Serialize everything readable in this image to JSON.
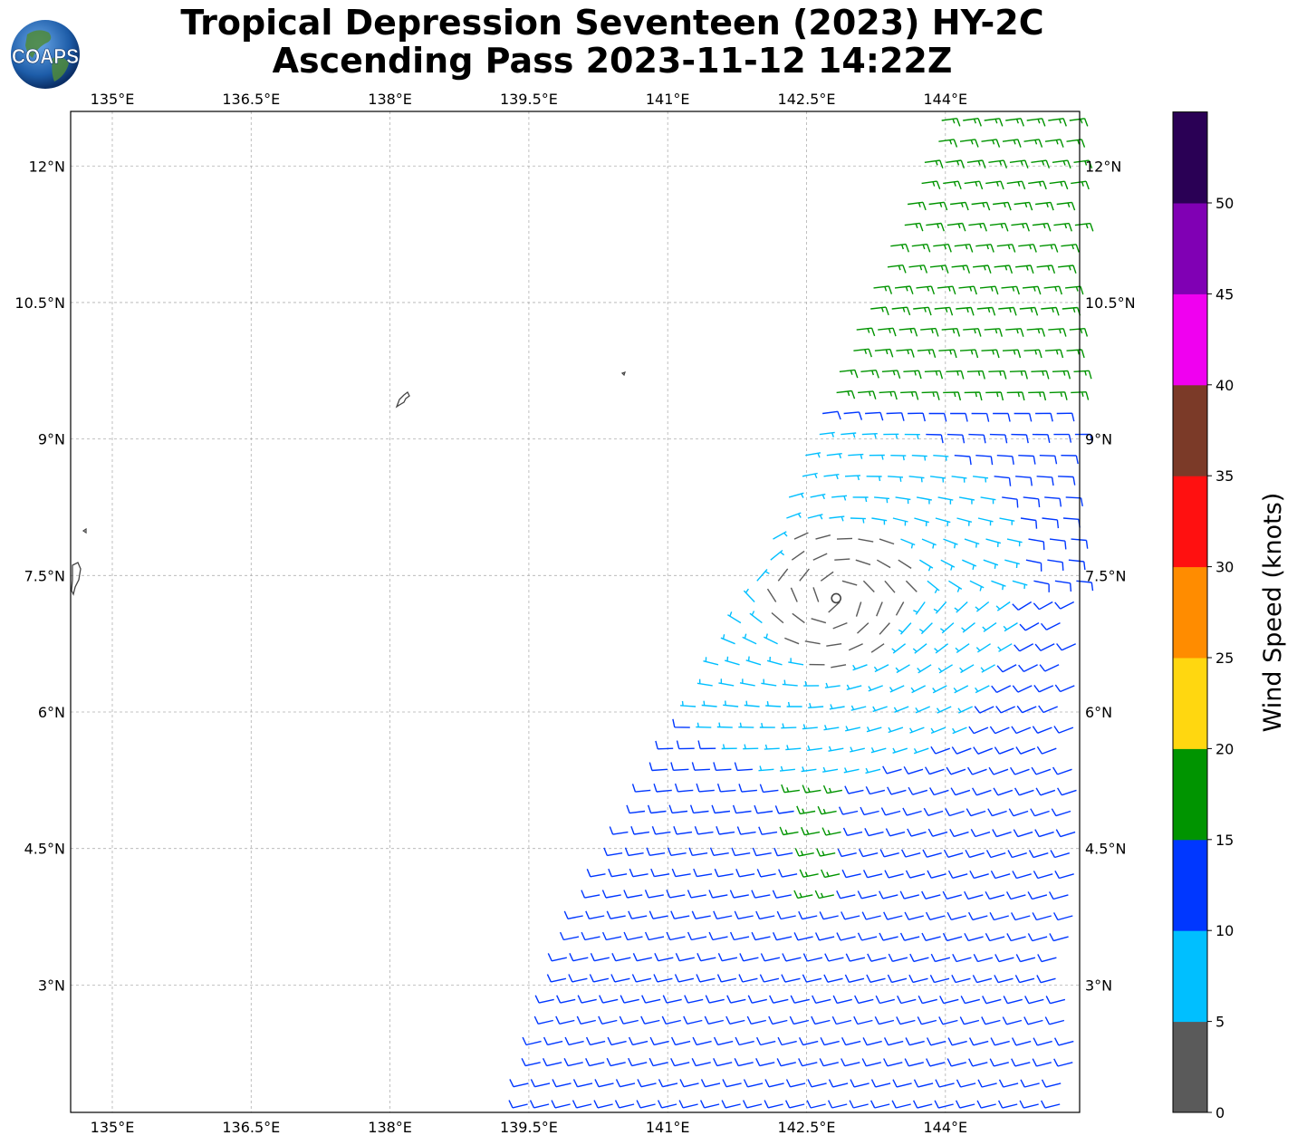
{
  "title": {
    "line1": "Tropical Depression Seventeen (2023) HY-2C",
    "line2": "Ascending Pass 2023-11-12 14:22Z"
  },
  "logo": {
    "text": "COAPS",
    "icon": "globe-icon"
  },
  "map": {
    "lon_range": [
      134.55,
      145.45
    ],
    "lat_range": [
      1.6,
      12.6
    ],
    "grid": true,
    "lon_ticks": [
      {
        "value": 135.0,
        "label": "135°E"
      },
      {
        "value": 136.5,
        "label": "136.5°E"
      },
      {
        "value": 138.0,
        "label": "138°E"
      },
      {
        "value": 139.5,
        "label": "139.5°E"
      },
      {
        "value": 141.0,
        "label": "141°E"
      },
      {
        "value": 142.5,
        "label": "142.5°E"
      },
      {
        "value": 144.0,
        "label": "144°E"
      }
    ],
    "lat_ticks": [
      {
        "value": 12.0,
        "label": "12°N"
      },
      {
        "value": 10.5,
        "label": "10.5°N"
      },
      {
        "value": 9.0,
        "label": "9°N"
      },
      {
        "value": 7.5,
        "label": "7.5°N"
      },
      {
        "value": 6.0,
        "label": "6°N"
      },
      {
        "value": 4.5,
        "label": "4.5°N"
      },
      {
        "value": 3.0,
        "label": "3°N"
      }
    ],
    "storm_center": {
      "lon": 142.82,
      "lat": 7.25
    },
    "swath": {
      "west_edge": [
        [
          144.0,
          12.6
        ],
        [
          142.4,
          8.6
        ],
        [
          141.8,
          7.0
        ],
        [
          140.0,
          3.6
        ],
        [
          139.4,
          1.6
        ]
      ]
    }
  },
  "colorbar": {
    "label": "Wind Speed (knots)",
    "ticks": [
      "0",
      "5",
      "10",
      "15",
      "20",
      "25",
      "30",
      "35",
      "40",
      "45",
      "50"
    ],
    "bins": [
      {
        "min": 0,
        "color": "#5a5a5a"
      },
      {
        "min": 5,
        "color": "#00bfff"
      },
      {
        "min": 10,
        "color": "#0037ff"
      },
      {
        "min": 15,
        "color": "#009400"
      },
      {
        "min": 20,
        "color": "#ffd710"
      },
      {
        "min": 25,
        "color": "#ff8c00"
      },
      {
        "min": 30,
        "color": "#ff1010"
      },
      {
        "min": 35,
        "color": "#7b3a28"
      },
      {
        "min": 40,
        "color": "#f000f0"
      },
      {
        "min": 45,
        "color": "#8000b4"
      },
      {
        "min": 50,
        "color": "#2a0055"
      }
    ]
  }
}
